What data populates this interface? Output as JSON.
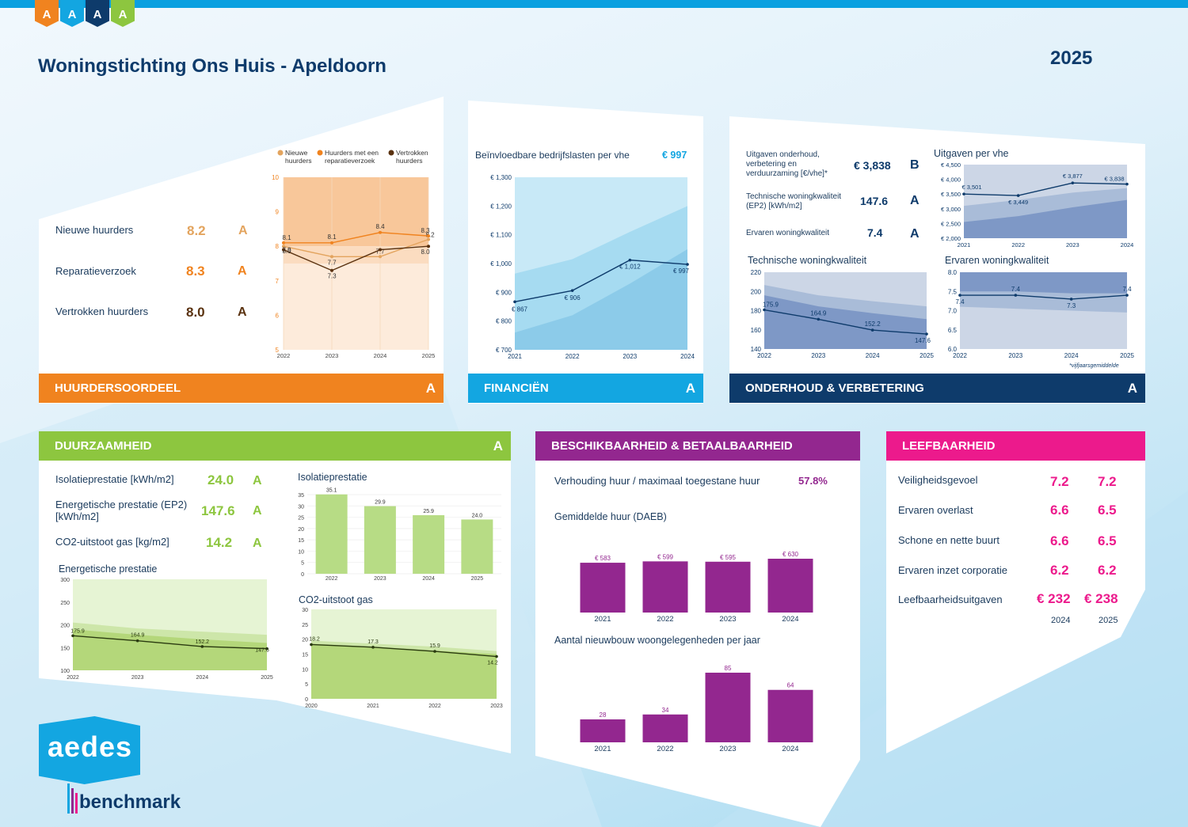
{
  "page": {
    "title": "Woningstichting Ons Huis - Apeldoorn",
    "year": "2025"
  },
  "logo": {
    "tags": [
      "A",
      "A",
      "A",
      "A"
    ],
    "tag_colors": [
      "#f0831f",
      "#13a6e1",
      "#0e3b6b",
      "#8dc63f"
    ],
    "aedes": "aedes",
    "benchmark": "benchmark"
  },
  "huurders": {
    "header": "HUURDERSOORDEEL",
    "grade": "A",
    "rows": [
      {
        "label": "Nieuwe huurders",
        "value": "8.2",
        "grade": "A",
        "color": "#e3a45e"
      },
      {
        "label": "Reparatieverzoek",
        "value": "8.3",
        "grade": "A",
        "color": "#f0831f"
      },
      {
        "label": "Vertrokken huurders",
        "value": "8.0",
        "grade": "A",
        "color": "#5a3210"
      }
    ],
    "legend": [
      "Nieuwe huurders",
      "Huurders met een reparatieverzoek",
      "Vertrokken huurders"
    ]
  },
  "financien": {
    "header": "FINANCIËN",
    "grade": "A",
    "label": "Beïnvloedbare bedrijfslasten per vhe",
    "value": "€ 997"
  },
  "onderhoud": {
    "header": "ONDERHOUD & VERBETERING",
    "grade": "A",
    "kpis": [
      {
        "label": "Uitgaven onderhoud, verbetering en verduurzaming [€/vhe]*",
        "value": "€ 3,838",
        "grade": "B"
      },
      {
        "label": "Technische woningkwaliteit (EP2) [kWh/m2]",
        "value": "147.6",
        "grade": "A"
      },
      {
        "label": "Ervaren woningkwaliteit",
        "value": "7.4",
        "grade": "A"
      }
    ],
    "footnote": "*vijfjaarsgemiddelde"
  },
  "duurzaamheid": {
    "header": "DUURZAAMHEID",
    "grade": "A",
    "kpis": [
      {
        "label": "Isolatieprestatie [kWh/m2]",
        "value": "24.0",
        "grade": "A"
      },
      {
        "label": "Energetische prestatie (EP2) [kWh/m2]",
        "value": "147.6",
        "grade": "A"
      },
      {
        "label": "CO2-uitstoot gas [kg/m2]",
        "value": "14.2",
        "grade": "A"
      }
    ]
  },
  "beschikbaarheid": {
    "header": "BESCHIKBAARHEID & BETAALBAARHEID",
    "ratio_label": "Verhouding huur / maximaal toegestane huur",
    "ratio_value": "57.8%"
  },
  "leefbaarheid": {
    "header": "LEEFBAARHEID",
    "rows": [
      {
        "label": "Veiligheidsgevoel",
        "v2024": "7.2",
        "v2025": "7.2"
      },
      {
        "label": "Ervaren overlast",
        "v2024": "6.6",
        "v2025": "6.5"
      },
      {
        "label": "Schone en nette buurt",
        "v2024": "6.6",
        "v2025": "6.5"
      },
      {
        "label": "Ervaren inzet corporatie",
        "v2024": "6.2",
        "v2025": "6.2"
      },
      {
        "label": "Leefbaarheidsuitgaven",
        "v2024": "€ 232",
        "v2025": "€ 238"
      }
    ],
    "years": [
      "2024",
      "2025"
    ]
  },
  "colors": {
    "orange": "#f0831f",
    "blue": "#13a6e1",
    "navy": "#0e3b6b",
    "green": "#8dc63f",
    "purple": "#93278f",
    "magenta": "#ec1a8c"
  },
  "chart_data": [
    {
      "id": "huurders",
      "type": "line",
      "title": "",
      "x": [
        "2022",
        "2023",
        "2024",
        "2025"
      ],
      "ylim": [
        5,
        10
      ],
      "yticks": [
        "5",
        "6",
        "7",
        "8",
        "9",
        "10"
      ],
      "series": [
        {
          "name": "Nieuwe huurders",
          "values": [
            8.0,
            7.7,
            7.7,
            8.2
          ],
          "labels": [
            "8.0",
            "7.7",
            "7.7",
            "8.2"
          ],
          "color": "#e3a45e"
        },
        {
          "name": "Huurders met een reparatieverzoek",
          "values": [
            8.1,
            8.1,
            8.4,
            8.3
          ],
          "labels": [
            "8.1",
            "8.1",
            "8.4",
            "8.3"
          ],
          "color": "#f0831f"
        },
        {
          "name": "Vertrokken huurders",
          "values": [
            7.9,
            7.3,
            7.9,
            8.0
          ],
          "labels": [
            "7.9",
            "7.3",
            "",
            "8.0"
          ],
          "color": "#5a3210"
        }
      ]
    },
    {
      "id": "financien",
      "type": "line",
      "title": "",
      "x": [
        "2021",
        "2022",
        "2023",
        "2024"
      ],
      "ylim": [
        700,
        1300
      ],
      "yticks": [
        "€ 700",
        "€ 800",
        "€ 900",
        "€ 1,000",
        "€ 1,100",
        "€ 1,200",
        "€ 1,300"
      ],
      "series": [
        {
          "name": "",
          "values": [
            867,
            906,
            1012,
            997
          ],
          "labels": [
            "€ 867",
            "€ 906",
            "€ 1,012",
            "€ 997"
          ]
        }
      ],
      "band_outer": {
        "low": [
          700,
          700,
          700,
          700
        ],
        "high": [
          1300,
          1300,
          1300,
          1300
        ]
      },
      "band_mid": {
        "low": [
          700,
          700,
          700,
          700
        ],
        "high": [
          965,
          1015,
          1110,
          1200
        ]
      },
      "band_inner": {
        "low": [
          700,
          700,
          700,
          700
        ],
        "high": [
          760,
          820,
          930,
          1050
        ]
      }
    },
    {
      "id": "uitgaven",
      "type": "line",
      "title": "Uitgaven per vhe",
      "x": [
        "2021",
        "2022",
        "2023",
        "2024"
      ],
      "ylim": [
        2000,
        4500
      ],
      "yticks": [
        "€ 2,000",
        "€ 2,500",
        "€ 3,000",
        "€ 3,500",
        "€ 4,000",
        "€ 4,500"
      ],
      "series": [
        {
          "name": "",
          "values": [
            3501,
            3449,
            3877,
            3838
          ],
          "labels": [
            "€ 3,501",
            "€ 3,449",
            "€ 3,877",
            "€ 3,838"
          ]
        }
      ],
      "band_outer": {
        "low": [
          2000,
          2000,
          2000,
          2000
        ],
        "high": [
          4500,
          4500,
          4500,
          4500
        ]
      },
      "band_mid": {
        "low": [
          2000,
          2000,
          2000,
          2000
        ],
        "high": [
          3100,
          3300,
          3550,
          3700
        ]
      },
      "band_inner": {
        "low": [
          2000,
          2000,
          2000,
          2000
        ],
        "high": [
          2550,
          2750,
          3050,
          3300
        ]
      }
    },
    {
      "id": "techkwal",
      "type": "line",
      "title": "Technische woningkwaliteit",
      "x": [
        "2022",
        "2023",
        "2024",
        "2025"
      ],
      "ylim": [
        130,
        220
      ],
      "yticks": [
        "140",
        "160",
        "180",
        "200",
        "220"
      ],
      "series": [
        {
          "name": "",
          "values": [
            175.9,
            164.9,
            152.2,
            147.6
          ],
          "labels": [
            "175.9",
            "164.9",
            "152.2",
            "147.6"
          ]
        }
      ],
      "band_outer": {
        "low": [
          130,
          130,
          130,
          130
        ],
        "high": [
          220,
          220,
          220,
          220
        ]
      },
      "band_mid": {
        "low": [
          130,
          130,
          130,
          130
        ],
        "high": [
          205,
          193,
          186,
          180
        ]
      },
      "band_inner": {
        "low": [
          130,
          130,
          130,
          130
        ],
        "high": [
          193,
          180,
          172,
          165
        ]
      }
    },
    {
      "id": "ervkwal",
      "type": "line",
      "title": "Ervaren woningkwaliteit",
      "x": [
        "2022",
        "2023",
        "2024",
        "2025"
      ],
      "ylim": [
        6.0,
        8.0
      ],
      "yticks": [
        "6.0",
        "6.5",
        "7.0",
        "7.5",
        "8.0"
      ],
      "series": [
        {
          "name": "",
          "values": [
            7.4,
            7.4,
            7.3,
            7.4
          ],
          "labels": [
            "7.4",
            "7.4",
            "7.3",
            "7.4"
          ]
        }
      ],
      "band_outer": {
        "low": [
          6.0,
          6.0,
          6.0,
          6.0
        ],
        "high": [
          8.0,
          8.0,
          8.0,
          8.0
        ]
      },
      "band_mid": {
        "low": [
          6.0,
          6.0,
          6.0,
          6.0
        ],
        "high": [
          7.5,
          7.5,
          7.45,
          7.45
        ]
      },
      "band_inner": {
        "low": [
          6.0,
          6.0,
          6.0,
          6.0
        ],
        "high": [
          7.1,
          7.05,
          7.0,
          6.95
        ]
      }
    },
    {
      "id": "isolatie",
      "type": "bar",
      "title": "Isolatieprestatie",
      "categories": [
        "2022",
        "2023",
        "2024",
        "2025"
      ],
      "values": [
        35.1,
        29.9,
        25.9,
        24.0
      ],
      "labels": [
        "35.1",
        "29.9",
        "25.9",
        "24.0"
      ],
      "ylim": [
        0,
        35
      ],
      "yticks": [
        "0",
        "5",
        "10",
        "15",
        "20",
        "25",
        "30",
        "35"
      ]
    },
    {
      "id": "energetisch",
      "type": "line",
      "title": "Energetische prestatie",
      "x": [
        "2022",
        "2023",
        "2024",
        "2025"
      ],
      "ylim": [
        100,
        300
      ],
      "yticks": [
        "100",
        "150",
        "200",
        "250",
        "300"
      ],
      "series": [
        {
          "name": "",
          "values": [
            175.9,
            164.9,
            152.2,
            147.6
          ],
          "labels": [
            "175.9",
            "164.9",
            "152.2",
            "147.6"
          ]
        }
      ],
      "band_outer": {
        "low": [
          100,
          100,
          100,
          100
        ],
        "high": [
          300,
          300,
          300,
          300
        ]
      },
      "band_mid": {
        "low": [
          100,
          100,
          100,
          100
        ],
        "high": [
          205,
          192,
          185,
          178
        ]
      },
      "band_inner": {
        "low": [
          100,
          100,
          100,
          100
        ],
        "high": [
          190,
          178,
          168,
          160
        ]
      }
    },
    {
      "id": "co2",
      "type": "line",
      "title": "CO2-uitstoot gas",
      "x": [
        "2020",
        "2021",
        "2022",
        "2023"
      ],
      "ylim": [
        0,
        30
      ],
      "yticks": [
        "0",
        "5",
        "10",
        "15",
        "20",
        "25",
        "30"
      ],
      "series": [
        {
          "name": "",
          "values": [
            18.2,
            17.3,
            15.9,
            14.2
          ],
          "labels": [
            "18.2",
            "17.3",
            "15.9",
            "14.2"
          ]
        }
      ],
      "band_outer": {
        "low": [
          0,
          0,
          0,
          0
        ],
        "high": [
          30,
          30,
          30,
          30
        ]
      },
      "band_mid": {
        "low": [
          0,
          0,
          0,
          0
        ],
        "high": [
          19.5,
          18.5,
          17.5,
          16
        ]
      },
      "band_inner": {
        "low": [
          0,
          0,
          0,
          0
        ],
        "high": [
          18.5,
          17.5,
          16.2,
          15
        ]
      }
    },
    {
      "id": "huur",
      "type": "bar",
      "title": "Gemiddelde huur (DAEB)",
      "categories": [
        "2021",
        "2022",
        "2023",
        "2024"
      ],
      "values": [
        583,
        599,
        595,
        630
      ],
      "labels": [
        "€ 583",
        "€ 599",
        "€ 595",
        "€ 630"
      ],
      "ylim": [
        0,
        630
      ]
    },
    {
      "id": "nieuwbouw",
      "type": "bar",
      "title": "Aantal nieuwbouw woongelegenheden per jaar",
      "categories": [
        "2021",
        "2022",
        "2023",
        "2024"
      ],
      "values": [
        28,
        34,
        85,
        64
      ],
      "labels": [
        "28",
        "34",
        "85",
        "64"
      ],
      "ylim": [
        0,
        85
      ]
    }
  ]
}
